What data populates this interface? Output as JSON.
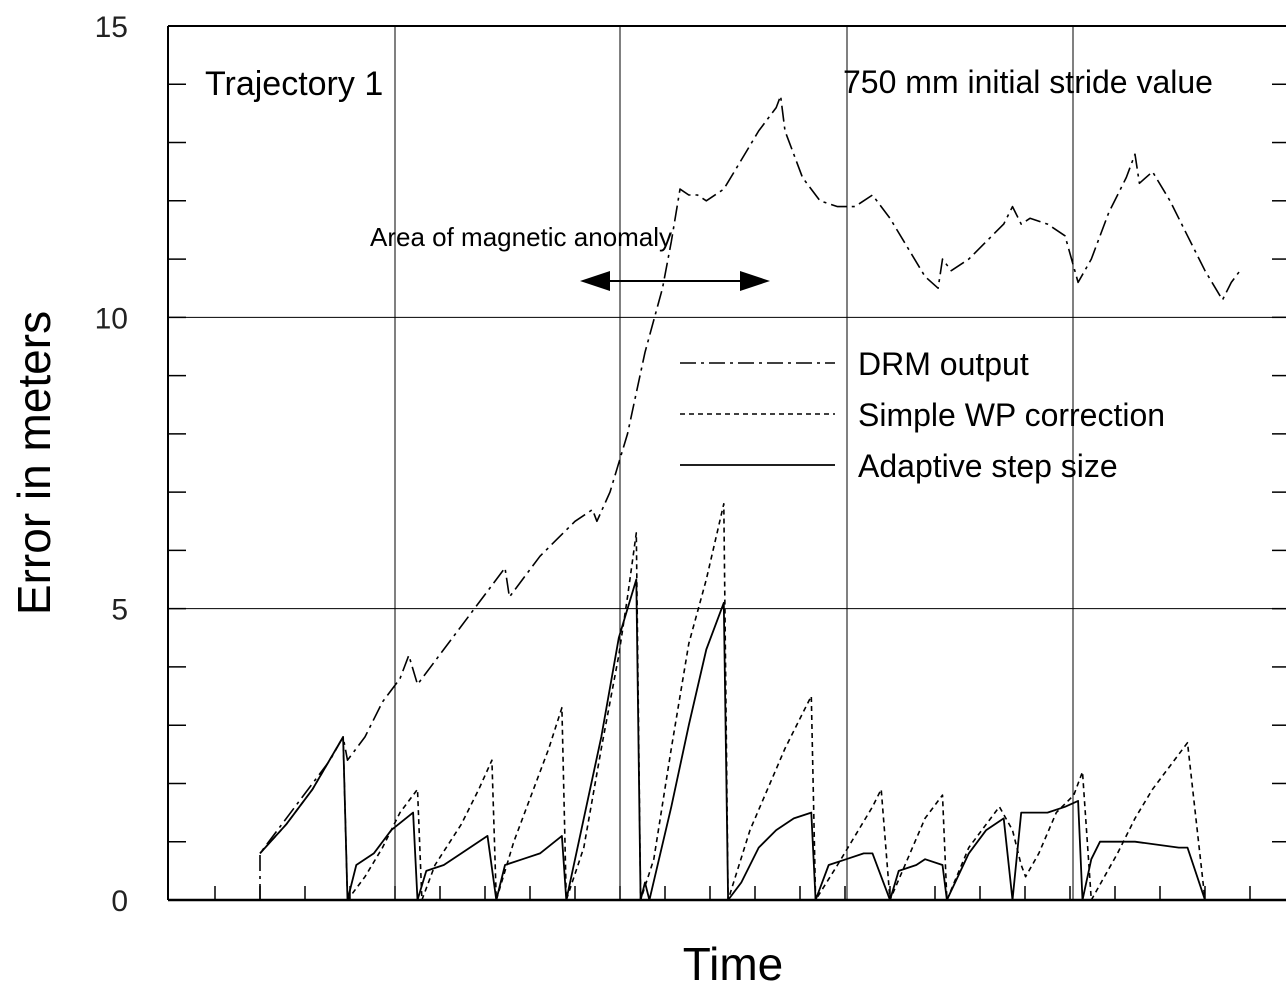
{
  "chart_data": {
    "type": "line",
    "xlabel": "Time",
    "ylabel": "Error in meters",
    "ylim": [
      0,
      15
    ],
    "yticks": [
      "0",
      "5",
      "10",
      "15"
    ],
    "grid": true,
    "legend_placement": "center-right",
    "annotations": {
      "trajectory": "Trajectory 1",
      "stride": "750 mm initial stride value",
      "anomaly": "Area of magnetic anomaly"
    },
    "anomaly_range": [
      0.52,
      0.7
    ],
    "series": [
      {
        "name": "DRM output",
        "dash": "16 5 3 5",
        "points": [
          [
            0.0,
            0.0
          ],
          [
            0.0,
            0.8
          ],
          [
            0.02,
            1.2
          ],
          [
            0.04,
            1.6
          ],
          [
            0.06,
            2.0
          ],
          [
            0.08,
            2.4
          ],
          [
            0.095,
            2.8
          ],
          [
            0.1,
            2.4
          ],
          [
            0.12,
            2.8
          ],
          [
            0.14,
            3.4
          ],
          [
            0.16,
            3.8
          ],
          [
            0.17,
            4.2
          ],
          [
            0.18,
            3.7
          ],
          [
            0.2,
            4.1
          ],
          [
            0.22,
            4.5
          ],
          [
            0.24,
            4.9
          ],
          [
            0.26,
            5.3
          ],
          [
            0.28,
            5.7
          ],
          [
            0.285,
            5.2
          ],
          [
            0.3,
            5.5
          ],
          [
            0.32,
            5.9
          ],
          [
            0.34,
            6.2
          ],
          [
            0.36,
            6.5
          ],
          [
            0.38,
            6.7
          ],
          [
            0.385,
            6.5
          ],
          [
            0.4,
            7.0
          ],
          [
            0.42,
            8.0
          ],
          [
            0.44,
            9.4
          ],
          [
            0.46,
            10.5
          ],
          [
            0.47,
            11.3
          ],
          [
            0.48,
            12.2
          ],
          [
            0.49,
            12.1
          ],
          [
            0.5,
            12.1
          ],
          [
            0.51,
            12.0
          ],
          [
            0.53,
            12.2
          ],
          [
            0.55,
            12.7
          ],
          [
            0.57,
            13.2
          ],
          [
            0.59,
            13.6
          ],
          [
            0.595,
            13.8
          ],
          [
            0.6,
            13.2
          ],
          [
            0.62,
            12.4
          ],
          [
            0.64,
            12.0
          ],
          [
            0.66,
            11.9
          ],
          [
            0.68,
            11.9
          ],
          [
            0.69,
            12.0
          ],
          [
            0.7,
            12.1
          ],
          [
            0.72,
            11.7
          ],
          [
            0.74,
            11.2
          ],
          [
            0.76,
            10.7
          ],
          [
            0.775,
            10.5
          ],
          [
            0.78,
            11.0
          ],
          [
            0.79,
            10.8
          ],
          [
            0.81,
            11.0
          ],
          [
            0.83,
            11.3
          ],
          [
            0.85,
            11.6
          ],
          [
            0.86,
            11.9
          ],
          [
            0.87,
            11.6
          ],
          [
            0.88,
            11.7
          ],
          [
            0.9,
            11.6
          ],
          [
            0.92,
            11.4
          ],
          [
            0.935,
            10.6
          ],
          [
            0.95,
            11.0
          ],
          [
            0.97,
            11.8
          ],
          [
            0.99,
            12.4
          ],
          [
            1.0,
            12.8
          ],
          [
            1.005,
            12.3
          ],
          [
            1.02,
            12.5
          ],
          [
            1.04,
            12.0
          ],
          [
            1.06,
            11.4
          ],
          [
            1.08,
            10.8
          ],
          [
            1.1,
            10.3
          ],
          [
            1.11,
            10.6
          ],
          [
            1.12,
            10.8
          ]
        ]
      },
      {
        "name": "Simple WP correction",
        "dash": "5 4",
        "points": [
          [
            0.0,
            0.8
          ],
          [
            0.03,
            1.3
          ],
          [
            0.06,
            1.9
          ],
          [
            0.095,
            2.8
          ],
          [
            0.1,
            0.0
          ],
          [
            0.12,
            0.4
          ],
          [
            0.14,
            0.9
          ],
          [
            0.16,
            1.5
          ],
          [
            0.18,
            1.9
          ],
          [
            0.185,
            0.0
          ],
          [
            0.2,
            0.6
          ],
          [
            0.23,
            1.3
          ],
          [
            0.25,
            1.9
          ],
          [
            0.265,
            2.4
          ],
          [
            0.27,
            0.0
          ],
          [
            0.29,
            1.0
          ],
          [
            0.31,
            1.8
          ],
          [
            0.33,
            2.6
          ],
          [
            0.345,
            3.3
          ],
          [
            0.35,
            0.0
          ],
          [
            0.37,
            0.9
          ],
          [
            0.39,
            2.6
          ],
          [
            0.41,
            4.2
          ],
          [
            0.42,
            5.2
          ],
          [
            0.43,
            6.3
          ],
          [
            0.435,
            0.0
          ],
          [
            0.45,
            0.7
          ],
          [
            0.47,
            2.6
          ],
          [
            0.49,
            4.4
          ],
          [
            0.51,
            5.5
          ],
          [
            0.53,
            6.8
          ],
          [
            0.535,
            0.0
          ],
          [
            0.56,
            1.2
          ],
          [
            0.6,
            2.6
          ],
          [
            0.62,
            3.2
          ],
          [
            0.63,
            3.5
          ],
          [
            0.635,
            0.0
          ],
          [
            0.66,
            0.6
          ],
          [
            0.68,
            1.1
          ],
          [
            0.7,
            1.6
          ],
          [
            0.71,
            1.9
          ],
          [
            0.72,
            0.0
          ],
          [
            0.74,
            0.7
          ],
          [
            0.76,
            1.4
          ],
          [
            0.78,
            1.8
          ],
          [
            0.785,
            0.0
          ],
          [
            0.81,
            0.9
          ],
          [
            0.83,
            1.3
          ],
          [
            0.845,
            1.6
          ],
          [
            0.86,
            1.2
          ],
          [
            0.87,
            0.6
          ],
          [
            0.875,
            0.4
          ],
          [
            0.89,
            0.8
          ],
          [
            0.91,
            1.5
          ],
          [
            0.93,
            1.8
          ],
          [
            0.94,
            2.2
          ],
          [
            0.95,
            0.0
          ],
          [
            0.98,
            0.8
          ],
          [
            1.0,
            1.4
          ],
          [
            1.02,
            1.9
          ],
          [
            1.05,
            2.5
          ],
          [
            1.06,
            2.7
          ],
          [
            1.08,
            0.0
          ]
        ]
      },
      {
        "name": "Adaptive step size",
        "dash": "",
        "points": [
          [
            0.0,
            0.8
          ],
          [
            0.03,
            1.3
          ],
          [
            0.06,
            1.9
          ],
          [
            0.095,
            2.8
          ],
          [
            0.1,
            0.0
          ],
          [
            0.11,
            0.6
          ],
          [
            0.13,
            0.8
          ],
          [
            0.15,
            1.2
          ],
          [
            0.175,
            1.5
          ],
          [
            0.18,
            0.0
          ],
          [
            0.19,
            0.5
          ],
          [
            0.21,
            0.6
          ],
          [
            0.23,
            0.8
          ],
          [
            0.26,
            1.1
          ],
          [
            0.27,
            0.0
          ],
          [
            0.28,
            0.6
          ],
          [
            0.3,
            0.7
          ],
          [
            0.32,
            0.8
          ],
          [
            0.345,
            1.1
          ],
          [
            0.35,
            0.0
          ],
          [
            0.37,
            1.4
          ],
          [
            0.39,
            2.8
          ],
          [
            0.41,
            4.5
          ],
          [
            0.43,
            5.5
          ],
          [
            0.435,
            0.0
          ],
          [
            0.44,
            0.3
          ],
          [
            0.445,
            0.0
          ],
          [
            0.47,
            1.6
          ],
          [
            0.49,
            3.0
          ],
          [
            0.51,
            4.3
          ],
          [
            0.53,
            5.1
          ],
          [
            0.535,
            0.0
          ],
          [
            0.55,
            0.3
          ],
          [
            0.57,
            0.9
          ],
          [
            0.59,
            1.2
          ],
          [
            0.61,
            1.4
          ],
          [
            0.63,
            1.5
          ],
          [
            0.635,
            0.0
          ],
          [
            0.65,
            0.6
          ],
          [
            0.67,
            0.7
          ],
          [
            0.69,
            0.8
          ],
          [
            0.7,
            0.8
          ],
          [
            0.72,
            0.0
          ],
          [
            0.73,
            0.5
          ],
          [
            0.75,
            0.6
          ],
          [
            0.76,
            0.7
          ],
          [
            0.78,
            0.6
          ],
          [
            0.785,
            0.0
          ],
          [
            0.81,
            0.8
          ],
          [
            0.83,
            1.2
          ],
          [
            0.85,
            1.4
          ],
          [
            0.86,
            0.0
          ],
          [
            0.87,
            1.5
          ],
          [
            0.9,
            1.5
          ],
          [
            0.92,
            1.6
          ],
          [
            0.935,
            1.7
          ],
          [
            0.94,
            0.0
          ],
          [
            0.95,
            0.7
          ],
          [
            0.96,
            1.0
          ],
          [
            1.0,
            1.0
          ],
          [
            1.05,
            0.9
          ],
          [
            1.06,
            0.9
          ],
          [
            1.08,
            0.0
          ]
        ]
      }
    ]
  }
}
